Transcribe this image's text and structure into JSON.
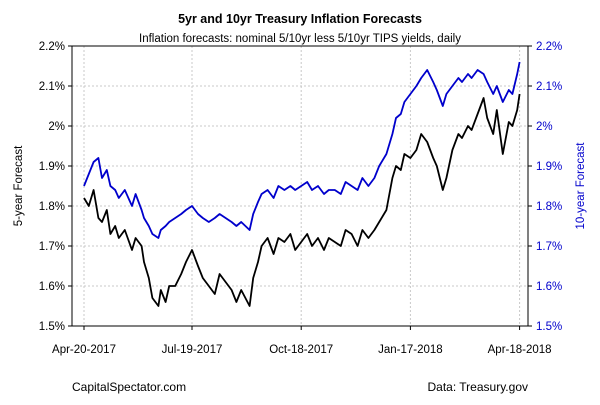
{
  "chart_data": {
    "type": "line",
    "title": "5yr and 10yr Treasury Inflation Forecasts",
    "subtitle": "Inflation forecasts: nominal 5/10yr less 5/10yr TIPS yields, daily",
    "ylabel_left": "5-year Forecast",
    "ylabel_right": "10-year Forecast",
    "ylim": [
      1.5,
      2.2
    ],
    "y_ticks": [
      {
        "value": 1.5,
        "label": "1.5%"
      },
      {
        "value": 1.6,
        "label": "1.6%"
      },
      {
        "value": 1.7,
        "label": "1.7%"
      },
      {
        "value": 1.8,
        "label": "1.8%"
      },
      {
        "value": 1.9,
        "label": "1.9%"
      },
      {
        "value": 2.0,
        "label": "2%"
      },
      {
        "value": 2.1,
        "label": "2.1%"
      },
      {
        "value": 2.2,
        "label": "2.2%"
      }
    ],
    "xlim": [
      "2017-04-10",
      "2018-04-25"
    ],
    "x_ticks": [
      {
        "value": "2017-04-20",
        "label": "Apr-20-2017"
      },
      {
        "value": "2017-07-19",
        "label": "Jul-19-2017"
      },
      {
        "value": "2017-10-18",
        "label": "Oct-18-2017"
      },
      {
        "value": "2018-01-17",
        "label": "Jan-17-2018"
      },
      {
        "value": "2018-04-18",
        "label": "Apr-18-2018"
      }
    ],
    "grid": true,
    "colors": {
      "five_year": "#000000",
      "ten_year": "#0000cc",
      "right_axis": "#0000cc",
      "grid": "#c8c8c8"
    },
    "series": [
      {
        "key": "five_year",
        "color": "#000000",
        "x": [
          "2017-04-20",
          "2017-04-24",
          "2017-04-28",
          "2017-05-02",
          "2017-05-05",
          "2017-05-09",
          "2017-05-12",
          "2017-05-16",
          "2017-05-19",
          "2017-05-24",
          "2017-05-30",
          "2017-06-02",
          "2017-06-07",
          "2017-06-09",
          "2017-06-13",
          "2017-06-16",
          "2017-06-21",
          "2017-06-23",
          "2017-06-27",
          "2017-06-30",
          "2017-07-05",
          "2017-07-10",
          "2017-07-14",
          "2017-07-19",
          "2017-07-24",
          "2017-07-28",
          "2017-08-02",
          "2017-08-07",
          "2017-08-11",
          "2017-08-16",
          "2017-08-21",
          "2017-08-25",
          "2017-08-29",
          "2017-09-05",
          "2017-09-08",
          "2017-09-12",
          "2017-09-15",
          "2017-09-20",
          "2017-09-25",
          "2017-09-29",
          "2017-10-04",
          "2017-10-09",
          "2017-10-13",
          "2017-10-18",
          "2017-10-23",
          "2017-10-27",
          "2017-11-01",
          "2017-11-06",
          "2017-11-10",
          "2017-11-15",
          "2017-11-20",
          "2017-11-24",
          "2017-11-29",
          "2017-12-04",
          "2017-12-08",
          "2017-12-13",
          "2017-12-18",
          "2017-12-22",
          "2017-12-28",
          "2018-01-02",
          "2018-01-05",
          "2018-01-09",
          "2018-01-12",
          "2018-01-17",
          "2018-01-22",
          "2018-01-26",
          "2018-01-31",
          "2018-02-05",
          "2018-02-08",
          "2018-02-13",
          "2018-02-16",
          "2018-02-21",
          "2018-02-26",
          "2018-03-01",
          "2018-03-06",
          "2018-03-09",
          "2018-03-14",
          "2018-03-19",
          "2018-03-22",
          "2018-03-27",
          "2018-03-30",
          "2018-04-04",
          "2018-04-09",
          "2018-04-12",
          "2018-04-16",
          "2018-04-18"
        ],
        "values": [
          1.82,
          1.8,
          1.84,
          1.77,
          1.76,
          1.79,
          1.73,
          1.75,
          1.72,
          1.74,
          1.69,
          1.72,
          1.7,
          1.66,
          1.62,
          1.57,
          1.55,
          1.59,
          1.56,
          1.6,
          1.6,
          1.63,
          1.66,
          1.69,
          1.65,
          1.62,
          1.6,
          1.58,
          1.63,
          1.61,
          1.59,
          1.56,
          1.59,
          1.55,
          1.62,
          1.66,
          1.7,
          1.72,
          1.68,
          1.72,
          1.71,
          1.73,
          1.69,
          1.71,
          1.73,
          1.7,
          1.72,
          1.69,
          1.72,
          1.71,
          1.7,
          1.74,
          1.73,
          1.7,
          1.74,
          1.72,
          1.74,
          1.76,
          1.79,
          1.87,
          1.9,
          1.89,
          1.93,
          1.92,
          1.94,
          1.98,
          1.96,
          1.92,
          1.9,
          1.84,
          1.87,
          1.94,
          1.98,
          1.97,
          2.0,
          1.99,
          2.03,
          2.07,
          2.02,
          1.98,
          2.04,
          1.93,
          2.01,
          2.0,
          2.04,
          2.08
        ]
      },
      {
        "key": "ten_year",
        "color": "#0000cc",
        "x": [
          "2017-04-20",
          "2017-04-24",
          "2017-04-28",
          "2017-05-02",
          "2017-05-05",
          "2017-05-09",
          "2017-05-12",
          "2017-05-16",
          "2017-05-19",
          "2017-05-24",
          "2017-05-30",
          "2017-06-02",
          "2017-06-07",
          "2017-06-09",
          "2017-06-13",
          "2017-06-16",
          "2017-06-21",
          "2017-06-23",
          "2017-06-27",
          "2017-06-30",
          "2017-07-05",
          "2017-07-10",
          "2017-07-14",
          "2017-07-19",
          "2017-07-24",
          "2017-07-28",
          "2017-08-02",
          "2017-08-07",
          "2017-08-11",
          "2017-08-16",
          "2017-08-21",
          "2017-08-25",
          "2017-08-29",
          "2017-09-05",
          "2017-09-08",
          "2017-09-12",
          "2017-09-15",
          "2017-09-20",
          "2017-09-25",
          "2017-09-29",
          "2017-10-04",
          "2017-10-09",
          "2017-10-13",
          "2017-10-18",
          "2017-10-23",
          "2017-10-27",
          "2017-11-01",
          "2017-11-06",
          "2017-11-10",
          "2017-11-15",
          "2017-11-20",
          "2017-11-24",
          "2017-11-29",
          "2017-12-04",
          "2017-12-08",
          "2017-12-13",
          "2017-12-18",
          "2017-12-22",
          "2017-12-28",
          "2018-01-02",
          "2018-01-05",
          "2018-01-09",
          "2018-01-12",
          "2018-01-17",
          "2018-01-22",
          "2018-01-26",
          "2018-01-31",
          "2018-02-05",
          "2018-02-08",
          "2018-02-13",
          "2018-02-16",
          "2018-02-21",
          "2018-02-26",
          "2018-03-01",
          "2018-03-06",
          "2018-03-09",
          "2018-03-14",
          "2018-03-19",
          "2018-03-22",
          "2018-03-27",
          "2018-03-30",
          "2018-04-04",
          "2018-04-09",
          "2018-04-12",
          "2018-04-16",
          "2018-04-18"
        ],
        "values": [
          1.85,
          1.88,
          1.91,
          1.92,
          1.87,
          1.89,
          1.85,
          1.84,
          1.82,
          1.84,
          1.8,
          1.83,
          1.79,
          1.77,
          1.75,
          1.73,
          1.72,
          1.74,
          1.75,
          1.76,
          1.77,
          1.78,
          1.79,
          1.8,
          1.78,
          1.77,
          1.76,
          1.77,
          1.78,
          1.77,
          1.76,
          1.75,
          1.76,
          1.74,
          1.78,
          1.81,
          1.83,
          1.84,
          1.82,
          1.85,
          1.84,
          1.85,
          1.84,
          1.85,
          1.86,
          1.84,
          1.85,
          1.83,
          1.84,
          1.84,
          1.83,
          1.86,
          1.85,
          1.84,
          1.87,
          1.85,
          1.87,
          1.9,
          1.93,
          1.98,
          2.02,
          2.03,
          2.06,
          2.08,
          2.1,
          2.12,
          2.14,
          2.11,
          2.09,
          2.05,
          2.08,
          2.1,
          2.12,
          2.11,
          2.13,
          2.12,
          2.14,
          2.13,
          2.11,
          2.08,
          2.1,
          2.06,
          2.09,
          2.08,
          2.13,
          2.16
        ]
      }
    ]
  },
  "footer": {
    "source_left": "CapitalSpectator.com",
    "source_right": "Data: Treasury.gov"
  }
}
